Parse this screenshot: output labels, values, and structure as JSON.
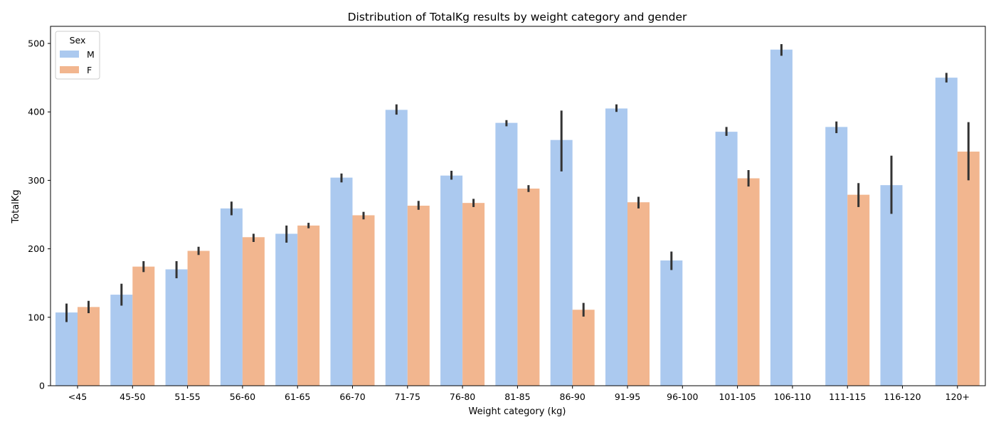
{
  "chart_data": {
    "type": "bar",
    "title": "Distribution of TotalKg results by weight category and gender",
    "xlabel": "Weight category (kg)",
    "ylabel": "TotalKg",
    "ylim": [
      0,
      525
    ],
    "yticks": [
      0,
      100,
      200,
      300,
      400,
      500
    ],
    "grid": false,
    "legend": {
      "title": "Sex",
      "placement": "top-left"
    },
    "categories": [
      "<45",
      "45-50",
      "51-55",
      "56-60",
      "61-65",
      "66-70",
      "71-75",
      "76-80",
      "81-85",
      "86-90",
      "91-95",
      "96-100",
      "101-105",
      "106-110",
      "111-115",
      "116-120",
      "120+"
    ],
    "series": [
      {
        "name": "M",
        "color": "#abc9ef",
        "values": [
          107,
          133,
          170,
          259,
          222,
          304,
          403,
          307,
          384,
          359,
          405,
          183,
          371,
          491,
          378,
          293,
          450
        ],
        "error_low": [
          93,
          117,
          157,
          249,
          209,
          297,
          396,
          301,
          379,
          313,
          400,
          169,
          365,
          482,
          369,
          251,
          443
        ],
        "error_high": [
          120,
          149,
          182,
          269,
          234,
          310,
          411,
          314,
          388,
          402,
          411,
          196,
          378,
          499,
          386,
          336,
          457
        ]
      },
      {
        "name": "F",
        "color": "#f2b68f",
        "values": [
          115,
          174,
          197,
          217,
          234,
          249,
          263,
          267,
          288,
          111,
          268,
          null,
          303,
          null,
          279,
          null,
          342
        ],
        "error_low": [
          106,
          166,
          191,
          210,
          230,
          243,
          257,
          261,
          283,
          101,
          259,
          null,
          291,
          null,
          261,
          null,
          300
        ],
        "error_high": [
          124,
          182,
          203,
          222,
          238,
          254,
          270,
          273,
          293,
          121,
          276,
          null,
          315,
          null,
          296,
          null,
          385
        ]
      }
    ],
    "errorbar_color": "#333333"
  }
}
